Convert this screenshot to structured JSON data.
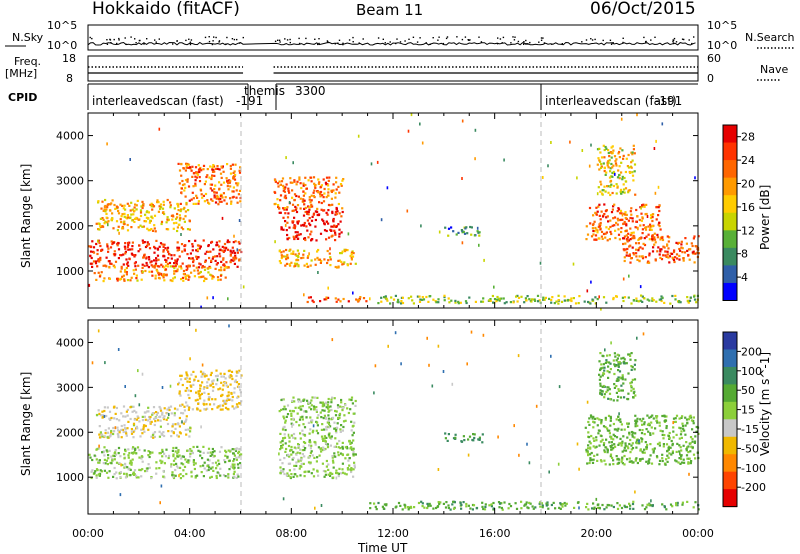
{
  "header": {
    "station": "Hokkaido (fitACF)",
    "beam": "Beam 11",
    "date": "06/Oct/2015"
  },
  "top_panels": {
    "nsky_label": "N.Sky",
    "nsky_ticks": [
      "10^5",
      "10^0"
    ],
    "nsearch_label": "N.Search",
    "nsearch_ticks": [
      "10^5",
      "10^0"
    ],
    "freq_label_1": "Freq.",
    "freq_label_2": "[MHz]",
    "freq_ticks": [
      "18",
      "8"
    ],
    "nave_label": "Nave",
    "nave_ticks": [
      "60",
      "0"
    ],
    "cpid_label": "CPID",
    "cpid_segments": [
      {
        "name": "interleavedscan (fast)",
        "code": "-191"
      },
      {
        "name": "themis",
        "code": "3300"
      },
      {
        "name": "interleavedscan (fast)",
        "code": "-191"
      }
    ]
  },
  "chart_data": [
    {
      "type": "heatmap",
      "quantity": "Power",
      "ylabel": "Slant Range [km]",
      "yticks": [
        1000,
        2000,
        3000,
        4000
      ],
      "colorbar_label": "Power [dB]",
      "colorbar_ticks": [
        4,
        8,
        12,
        16,
        20,
        24,
        28
      ],
      "colorbar_colors": [
        "#0000ff",
        "#2f5fa8",
        "#3a8a60",
        "#58b037",
        "#c8d400",
        "#ffcc00",
        "#ff9a00",
        "#ff6600",
        "#ff3300",
        "#e60000"
      ],
      "blobs": [
        {
          "t0": 0.0,
          "t1": 6.0,
          "r0": 1100,
          "r1": 1700,
          "p": 27
        },
        {
          "t0": 0.2,
          "t1": 5.5,
          "r0": 800,
          "r1": 1150,
          "p": 20
        },
        {
          "t0": 0.3,
          "t1": 4.0,
          "r0": 1900,
          "r1": 2600,
          "p": 18
        },
        {
          "t0": 3.5,
          "t1": 6.0,
          "r0": 2500,
          "r1": 3400,
          "p": 22
        },
        {
          "t0": 7.5,
          "t1": 10.0,
          "r0": 1700,
          "r1": 2400,
          "p": 28
        },
        {
          "t0": 7.3,
          "t1": 10.0,
          "r0": 2400,
          "r1": 3100,
          "p": 22
        },
        {
          "t0": 7.5,
          "t1": 10.5,
          "r0": 1100,
          "r1": 1500,
          "p": 18
        },
        {
          "t0": 8.5,
          "t1": 11.0,
          "r0": 330,
          "r1": 450,
          "p": 24
        },
        {
          "t0": 11.0,
          "t1": 24.0,
          "r0": 300,
          "r1": 480,
          "p": 12
        },
        {
          "t0": 14.0,
          "t1": 15.5,
          "r0": 1800,
          "r1": 2000,
          "p": 8
        },
        {
          "t0": 19.5,
          "t1": 22.5,
          "r0": 1700,
          "r1": 2500,
          "p": 22
        },
        {
          "t0": 21.0,
          "t1": 24.0,
          "r0": 1200,
          "r1": 1800,
          "p": 24
        },
        {
          "t0": 20.0,
          "t1": 21.5,
          "r0": 2700,
          "r1": 3800,
          "p": 16
        }
      ],
      "xlim": [
        0,
        24
      ],
      "ylim": [
        180,
        4500
      ]
    },
    {
      "type": "heatmap",
      "quantity": "Velocity",
      "ylabel": "Slant Range [km]",
      "yticks": [
        1000,
        2000,
        3000,
        4000
      ],
      "colorbar_label": "Velocity [m s^-1]",
      "colorbar_ticks": [
        200,
        100,
        50,
        15,
        -15,
        -50,
        -100,
        -200
      ],
      "colorbar_colors": [
        "#2a3aa0",
        "#2f6fb0",
        "#3a8a60",
        "#55aa33",
        "#8ccf3a",
        "#c8c8c8",
        "#f0b800",
        "#ff8800",
        "#ff4400",
        "#e60000"
      ],
      "blobs": [
        {
          "t0": 0.0,
          "t1": 6.0,
          "r0": 1000,
          "r1": 1700,
          "v": 0
        },
        {
          "t0": 0.3,
          "t1": 4.0,
          "r0": 1900,
          "r1": 2600,
          "v": -40
        },
        {
          "t0": 3.5,
          "t1": 6.0,
          "r0": 2500,
          "r1": 3400,
          "v": -60
        },
        {
          "t0": 7.5,
          "t1": 10.5,
          "r0": 1000,
          "r1": 2800,
          "v": 0
        },
        {
          "t0": 11.0,
          "t1": 24.0,
          "r0": 300,
          "r1": 480,
          "v": 30
        },
        {
          "t0": 14.0,
          "t1": 15.5,
          "r0": 1800,
          "r1": 2000,
          "v": 60
        },
        {
          "t0": 19.5,
          "t1": 24.0,
          "r0": 1300,
          "r1": 2400,
          "v": 20
        },
        {
          "t0": 20.0,
          "t1": 21.5,
          "r0": 2700,
          "r1": 3800,
          "v": 30
        }
      ],
      "xlim": [
        0,
        24
      ],
      "ylim": [
        180,
        4500
      ]
    }
  ],
  "xaxis": {
    "ticks": [
      "00:00",
      "04:00",
      "08:00",
      "12:00",
      "16:00",
      "20:00",
      "00:00"
    ],
    "label": "Time UT"
  }
}
